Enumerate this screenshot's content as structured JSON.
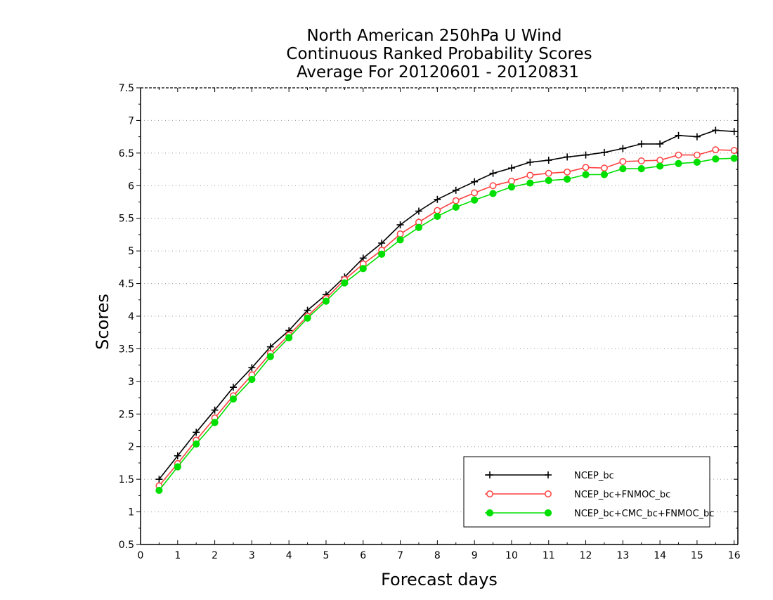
{
  "chart_data": {
    "type": "line",
    "title": [
      "North American 250hPa U Wind",
      "Continuous Ranked Probability Scores",
      "Average For 20120601 - 20120831"
    ],
    "xlabel": "Forecast days",
    "ylabel": "Scores",
    "xlim": [
      0,
      16.1
    ],
    "ylim": [
      0.5,
      7.5
    ],
    "xticks": [
      "0",
      "1",
      "2",
      "3",
      "4",
      "5",
      "6",
      "7",
      "8",
      "9",
      "10",
      "11",
      "12",
      "13",
      "14",
      "15",
      "16"
    ],
    "yticks": [
      "0.5",
      "1",
      "1.5",
      "2",
      "2.5",
      "3",
      "3.5",
      "4",
      "4.5",
      "5",
      "5.5",
      "6",
      "6.5",
      "7",
      "7.5"
    ],
    "grid": "horizontal dotted",
    "legend_position": "bottom-right",
    "x": [
      0.5,
      1,
      1.5,
      2,
      2.5,
      3,
      3.5,
      4,
      4.5,
      5,
      5.5,
      6,
      6.5,
      7,
      7.5,
      8,
      8.5,
      9,
      9.5,
      10,
      10.5,
      11,
      11.5,
      12,
      12.5,
      13,
      13.5,
      14,
      14.5,
      15,
      15.5,
      16
    ],
    "series": [
      {
        "name": "NCEP_bc",
        "color": "#000000",
        "marker": "plus",
        "values": [
          1.5,
          1.86,
          2.22,
          2.56,
          2.91,
          3.21,
          3.53,
          3.78,
          4.09,
          4.33,
          4.6,
          4.89,
          5.12,
          5.4,
          5.61,
          5.79,
          5.93,
          6.06,
          6.19,
          6.27,
          6.36,
          6.39,
          6.44,
          6.47,
          6.51,
          6.57,
          6.64,
          6.64,
          6.77,
          6.75,
          6.85,
          6.83
        ]
      },
      {
        "name": "NCEP_bc+FNMOC_bc",
        "color": "#ff4040",
        "marker": "open-circle",
        "values": [
          1.4,
          1.74,
          2.1,
          2.44,
          2.78,
          3.1,
          3.43,
          3.71,
          4.0,
          4.27,
          4.56,
          4.8,
          5.01,
          5.26,
          5.44,
          5.62,
          5.77,
          5.89,
          6.0,
          6.07,
          6.16,
          6.19,
          6.21,
          6.28,
          6.27,
          6.37,
          6.38,
          6.39,
          6.47,
          6.47,
          6.55,
          6.54
        ]
      },
      {
        "name": "NCEP_bc+CMC_bc+FNMOC_bc",
        "color": "#00e000",
        "marker": "filled-circle",
        "values": [
          1.33,
          1.69,
          2.04,
          2.37,
          2.73,
          3.03,
          3.38,
          3.67,
          3.97,
          4.23,
          4.51,
          4.73,
          4.95,
          5.17,
          5.36,
          5.53,
          5.67,
          5.78,
          5.88,
          5.98,
          6.04,
          6.08,
          6.1,
          6.17,
          6.17,
          6.26,
          6.26,
          6.3,
          6.34,
          6.36,
          6.41,
          6.42
        ]
      }
    ]
  }
}
